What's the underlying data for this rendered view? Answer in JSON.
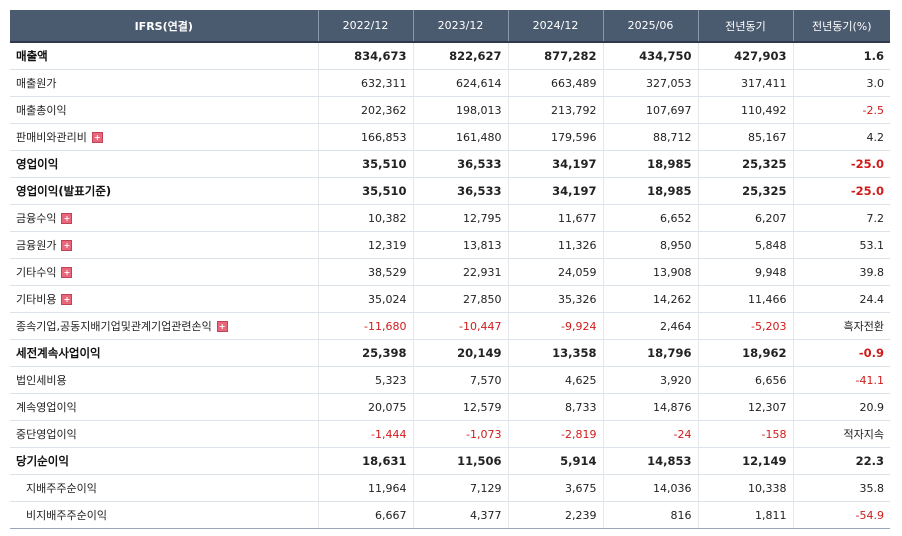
{
  "header": {
    "col0": "IFRS(연결)",
    "cols": [
      "2022/12",
      "2023/12",
      "2024/12",
      "2025/06",
      "전년동기",
      "전년동기(%)"
    ]
  },
  "rows": [
    {
      "label": "매출액",
      "bold": true,
      "expand": false,
      "indent": false,
      "values": [
        "834,673",
        "822,627",
        "877,282",
        "434,750",
        "427,903",
        "1.6"
      ],
      "neg": [
        false,
        false,
        false,
        false,
        false,
        false
      ]
    },
    {
      "label": "매출원가",
      "bold": false,
      "expand": false,
      "indent": false,
      "values": [
        "632,311",
        "624,614",
        "663,489",
        "327,053",
        "317,411",
        "3.0"
      ],
      "neg": [
        false,
        false,
        false,
        false,
        false,
        false
      ]
    },
    {
      "label": "매출총이익",
      "bold": false,
      "expand": false,
      "indent": false,
      "values": [
        "202,362",
        "198,013",
        "213,792",
        "107,697",
        "110,492",
        "-2.5"
      ],
      "neg": [
        false,
        false,
        false,
        false,
        false,
        true
      ]
    },
    {
      "label": "판매비와관리비",
      "bold": false,
      "expand": true,
      "indent": false,
      "values": [
        "166,853",
        "161,480",
        "179,596",
        "88,712",
        "85,167",
        "4.2"
      ],
      "neg": [
        false,
        false,
        false,
        false,
        false,
        false
      ]
    },
    {
      "label": "영업이익",
      "bold": true,
      "expand": false,
      "indent": false,
      "sep": true,
      "values": [
        "35,510",
        "36,533",
        "34,197",
        "18,985",
        "25,325",
        "-25.0"
      ],
      "neg": [
        false,
        false,
        false,
        false,
        false,
        true
      ]
    },
    {
      "label": "영업이익(발표기준)",
      "bold": true,
      "expand": false,
      "indent": false,
      "sep": true,
      "values": [
        "35,510",
        "36,533",
        "34,197",
        "18,985",
        "25,325",
        "-25.0"
      ],
      "neg": [
        false,
        false,
        false,
        false,
        false,
        true
      ]
    },
    {
      "label": "금융수익",
      "bold": false,
      "expand": true,
      "indent": false,
      "values": [
        "10,382",
        "12,795",
        "11,677",
        "6,652",
        "6,207",
        "7.2"
      ],
      "neg": [
        false,
        false,
        false,
        false,
        false,
        false
      ]
    },
    {
      "label": "금융원가",
      "bold": false,
      "expand": true,
      "indent": false,
      "values": [
        "12,319",
        "13,813",
        "11,326",
        "8,950",
        "5,848",
        "53.1"
      ],
      "neg": [
        false,
        false,
        false,
        false,
        false,
        false
      ]
    },
    {
      "label": "기타수익",
      "bold": false,
      "expand": true,
      "indent": false,
      "values": [
        "38,529",
        "22,931",
        "24,059",
        "13,908",
        "9,948",
        "39.8"
      ],
      "neg": [
        false,
        false,
        false,
        false,
        false,
        false
      ]
    },
    {
      "label": "기타비용",
      "bold": false,
      "expand": true,
      "indent": false,
      "values": [
        "35,024",
        "27,850",
        "35,326",
        "14,262",
        "11,466",
        "24.4"
      ],
      "neg": [
        false,
        false,
        false,
        false,
        false,
        false
      ]
    },
    {
      "label": "종속기업,공동지배기업및관계기업관련손익",
      "bold": false,
      "expand": true,
      "indent": false,
      "values": [
        "-11,680",
        "-10,447",
        "-9,924",
        "2,464",
        "-5,203",
        "흑자전환"
      ],
      "neg": [
        true,
        true,
        true,
        false,
        true,
        false
      ]
    },
    {
      "label": "세전계속사업이익",
      "bold": true,
      "expand": false,
      "indent": false,
      "sep": true,
      "values": [
        "25,398",
        "20,149",
        "13,358",
        "18,796",
        "18,962",
        "-0.9"
      ],
      "neg": [
        false,
        false,
        false,
        false,
        false,
        true
      ]
    },
    {
      "label": "법인세비용",
      "bold": false,
      "expand": false,
      "indent": false,
      "values": [
        "5,323",
        "7,570",
        "4,625",
        "3,920",
        "6,656",
        "-41.1"
      ],
      "neg": [
        false,
        false,
        false,
        false,
        false,
        true
      ]
    },
    {
      "label": "계속영업이익",
      "bold": false,
      "expand": false,
      "indent": false,
      "values": [
        "20,075",
        "12,579",
        "8,733",
        "14,876",
        "12,307",
        "20.9"
      ],
      "neg": [
        false,
        false,
        false,
        false,
        false,
        false
      ]
    },
    {
      "label": "중단영업이익",
      "bold": false,
      "expand": false,
      "indent": false,
      "values": [
        "-1,444",
        "-1,073",
        "-2,819",
        "-24",
        "-158",
        "적자지속"
      ],
      "neg": [
        true,
        true,
        true,
        true,
        true,
        false
      ]
    },
    {
      "label": "당기순이익",
      "bold": true,
      "expand": false,
      "indent": false,
      "sep": true,
      "values": [
        "18,631",
        "11,506",
        "5,914",
        "14,853",
        "12,149",
        "22.3"
      ],
      "neg": [
        false,
        false,
        false,
        false,
        false,
        false
      ]
    },
    {
      "label": "지배주주순이익",
      "bold": false,
      "expand": false,
      "indent": true,
      "values": [
        "11,964",
        "7,129",
        "3,675",
        "14,036",
        "10,338",
        "35.8"
      ],
      "neg": [
        false,
        false,
        false,
        false,
        false,
        false
      ]
    },
    {
      "label": "비지배주주순이익",
      "bold": false,
      "expand": false,
      "indent": true,
      "values": [
        "6,667",
        "4,377",
        "2,239",
        "816",
        "1,811",
        "-54.9"
      ],
      "neg": [
        false,
        false,
        false,
        false,
        false,
        true
      ]
    }
  ],
  "icons": {
    "expand": "plus-square-icon",
    "expand_glyph": "+"
  },
  "colors": {
    "header_bg": "#4a5a6f",
    "negative": "#d11b1b",
    "expand_icon": "#e9677a"
  }
}
